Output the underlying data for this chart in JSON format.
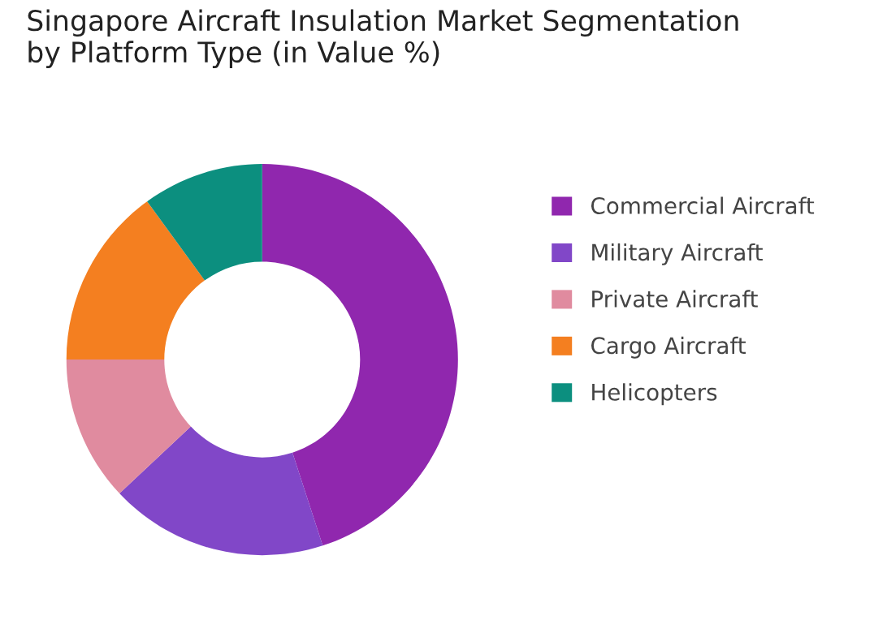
{
  "chart_data": {
    "type": "donut",
    "title": "Singapore Aircraft Insulation Market Segmentation\nby Platform Type (in Value %)",
    "categories": [
      "Commercial Aircraft",
      "Military Aircraft",
      "Private Aircraft",
      "Cargo Aircraft",
      "Helicopters"
    ],
    "values": [
      45,
      18,
      12,
      15,
      10
    ],
    "colors": [
      "#9027ae",
      "#8147c8",
      "#e08b9f",
      "#f47f20",
      "#0c8f7f"
    ],
    "legend": "right"
  }
}
